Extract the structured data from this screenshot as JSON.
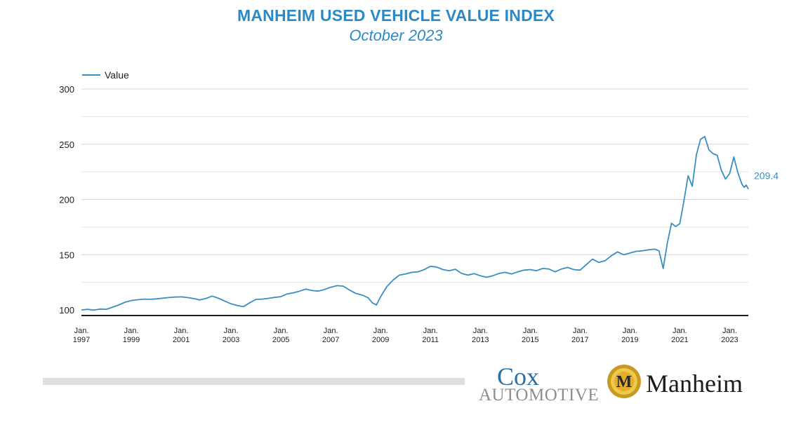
{
  "header": {
    "title": "MANHEIM USED VEHICLE VALUE INDEX",
    "subtitle": "October 2023"
  },
  "logos": {
    "cox_word": "Cox",
    "cox_sub": "AUTOMOTIVE",
    "manheim_word": "Manheim",
    "manheim_badge_letter": "M"
  },
  "colors": {
    "accent": "#2b8ac6",
    "line": "#3a8fc0",
    "grid": "#d9d9d9",
    "axis": "#1a1a1a"
  },
  "chart_data": {
    "type": "line",
    "title": "MANHEIM USED VEHICLE VALUE INDEX",
    "subtitle": "October 2023",
    "legend": {
      "entries": [
        "Value"
      ],
      "position": "top-left"
    },
    "xlabel": "",
    "ylabel": "",
    "ylim": [
      100,
      300
    ],
    "yticks": [
      100,
      150,
      200,
      250,
      300
    ],
    "grid": true,
    "x_range": [
      "1997-01",
      "2023-10"
    ],
    "xticks": [
      {
        "date": "1997-01",
        "label": [
          "Jan.",
          "1997"
        ]
      },
      {
        "date": "1999-01",
        "label": [
          "Jan.",
          "1999"
        ]
      },
      {
        "date": "2001-01",
        "label": [
          "Jan.",
          "2001"
        ]
      },
      {
        "date": "2003-01",
        "label": [
          "Jan.",
          "2003"
        ]
      },
      {
        "date": "2005-01",
        "label": [
          "Jan.",
          "2005"
        ]
      },
      {
        "date": "2007-01",
        "label": [
          "Jan.",
          "2007"
        ]
      },
      {
        "date": "2009-01",
        "label": [
          "Jan.",
          "2009"
        ]
      },
      {
        "date": "2011-01",
        "label": [
          "Jan.",
          "2011"
        ]
      },
      {
        "date": "2013-01",
        "label": [
          "Jan.",
          "2013"
        ]
      },
      {
        "date": "2015-01",
        "label": [
          "Jan.",
          "2015"
        ]
      },
      {
        "date": "2017-01",
        "label": [
          "Jan.",
          "2017"
        ]
      },
      {
        "date": "2019-01",
        "label": [
          "Jan.",
          "2019"
        ]
      },
      {
        "date": "2021-01",
        "label": [
          "Jan.",
          "2021"
        ]
      },
      {
        "date": "2023-01",
        "label": [
          "Jan.",
          "2023"
        ]
      }
    ],
    "last_value_label": "209.4",
    "series": [
      {
        "name": "Value",
        "points": [
          [
            "1997-01",
            100.0
          ],
          [
            "1997-04",
            100.5
          ],
          [
            "1997-07",
            99.8
          ],
          [
            "1997-10",
            100.8
          ],
          [
            "1998-01",
            100.6
          ],
          [
            "1998-04",
            102.5
          ],
          [
            "1998-07",
            104.5
          ],
          [
            "1998-10",
            107.0
          ],
          [
            "1999-01",
            108.5
          ],
          [
            "1999-04",
            109.2
          ],
          [
            "1999-07",
            109.8
          ],
          [
            "1999-10",
            109.6
          ],
          [
            "2000-01",
            110.0
          ],
          [
            "2000-04",
            110.6
          ],
          [
            "2000-07",
            111.2
          ],
          [
            "2000-10",
            111.6
          ],
          [
            "2001-01",
            111.8
          ],
          [
            "2001-04",
            111.2
          ],
          [
            "2001-07",
            110.3
          ],
          [
            "2001-10",
            109.0
          ],
          [
            "2002-01",
            110.5
          ],
          [
            "2002-04",
            112.5
          ],
          [
            "2002-07",
            110.5
          ],
          [
            "2002-10",
            108.0
          ],
          [
            "2003-01",
            105.5
          ],
          [
            "2003-04",
            104.0
          ],
          [
            "2003-07",
            103.0
          ],
          [
            "2003-10",
            106.5
          ],
          [
            "2004-01",
            109.5
          ],
          [
            "2004-04",
            109.8
          ],
          [
            "2004-07",
            110.5
          ],
          [
            "2004-10",
            111.3
          ],
          [
            "2005-01",
            112.0
          ],
          [
            "2005-04",
            114.5
          ],
          [
            "2005-07",
            115.5
          ],
          [
            "2005-10",
            117.0
          ],
          [
            "2006-01",
            118.8
          ],
          [
            "2006-04",
            117.5
          ],
          [
            "2006-07",
            117.0
          ],
          [
            "2006-10",
            118.5
          ],
          [
            "2007-01",
            120.5
          ],
          [
            "2007-04",
            122.0
          ],
          [
            "2007-07",
            121.5
          ],
          [
            "2007-10",
            118.0
          ],
          [
            "2008-01",
            115.0
          ],
          [
            "2008-04",
            113.5
          ],
          [
            "2008-07",
            111.0
          ],
          [
            "2008-09",
            106.5
          ],
          [
            "2008-11",
            104.5
          ],
          [
            "2009-01",
            112.0
          ],
          [
            "2009-04",
            121.0
          ],
          [
            "2009-07",
            127.0
          ],
          [
            "2009-10",
            131.5
          ],
          [
            "2010-01",
            132.5
          ],
          [
            "2010-04",
            134.0
          ],
          [
            "2010-07",
            134.5
          ],
          [
            "2010-10",
            136.5
          ],
          [
            "2011-01",
            139.5
          ],
          [
            "2011-04",
            138.8
          ],
          [
            "2011-07",
            136.5
          ],
          [
            "2011-10",
            135.5
          ],
          [
            "2012-01",
            136.8
          ],
          [
            "2012-04",
            133.0
          ],
          [
            "2012-07",
            131.5
          ],
          [
            "2012-10",
            132.8
          ],
          [
            "2013-01",
            131.0
          ],
          [
            "2013-04",
            129.5
          ],
          [
            "2013-07",
            131.0
          ],
          [
            "2013-10",
            133.0
          ],
          [
            "2014-01",
            134.0
          ],
          [
            "2014-04",
            132.5
          ],
          [
            "2014-07",
            134.5
          ],
          [
            "2014-10",
            136.0
          ],
          [
            "2015-01",
            136.5
          ],
          [
            "2015-04",
            135.5
          ],
          [
            "2015-07",
            137.5
          ],
          [
            "2015-10",
            137.0
          ],
          [
            "2016-01",
            134.5
          ],
          [
            "2016-04",
            137.0
          ],
          [
            "2016-07",
            138.5
          ],
          [
            "2016-10",
            136.5
          ],
          [
            "2017-01",
            136.0
          ],
          [
            "2017-04",
            141.0
          ],
          [
            "2017-07",
            146.0
          ],
          [
            "2017-10",
            143.0
          ],
          [
            "2018-01",
            144.5
          ],
          [
            "2018-04",
            149.0
          ],
          [
            "2018-07",
            152.5
          ],
          [
            "2018-10",
            150.0
          ],
          [
            "2019-01",
            151.5
          ],
          [
            "2019-04",
            153.0
          ],
          [
            "2019-07",
            153.5
          ],
          [
            "2019-10",
            154.5
          ],
          [
            "2020-01",
            155.0
          ],
          [
            "2020-03",
            153.5
          ],
          [
            "2020-05",
            137.5
          ],
          [
            "2020-07",
            160.5
          ],
          [
            "2020-09",
            178.5
          ],
          [
            "2020-11",
            175.5
          ],
          [
            "2021-01",
            178.0
          ],
          [
            "2021-03",
            199.0
          ],
          [
            "2021-05",
            221.5
          ],
          [
            "2021-07",
            212.0
          ],
          [
            "2021-09",
            240.5
          ],
          [
            "2021-11",
            254.5
          ],
          [
            "2022-01",
            257.0
          ],
          [
            "2022-03",
            245.0
          ],
          [
            "2022-05",
            241.5
          ],
          [
            "2022-07",
            240.0
          ],
          [
            "2022-09",
            226.5
          ],
          [
            "2022-11",
            218.5
          ],
          [
            "2023-01",
            223.5
          ],
          [
            "2023-03",
            238.5
          ],
          [
            "2023-05",
            224.0
          ],
          [
            "2023-07",
            213.5
          ],
          [
            "2023-08",
            211.0
          ],
          [
            "2023-09",
            213.0
          ],
          [
            "2023-10",
            209.4
          ]
        ]
      }
    ]
  }
}
